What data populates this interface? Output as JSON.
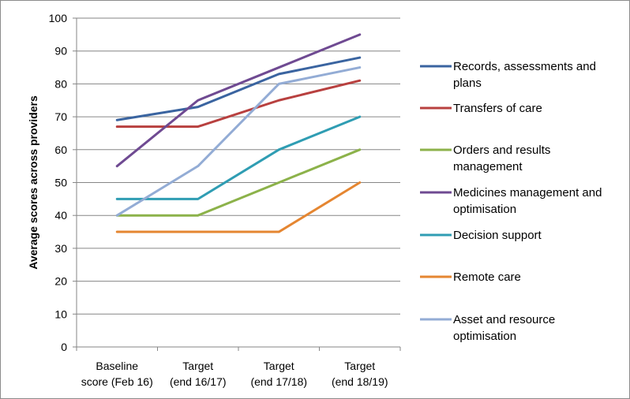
{
  "chart_data": {
    "type": "line",
    "title": "",
    "xlabel": "",
    "ylabel": "Average scores across providers",
    "ylim": [
      0,
      100
    ],
    "yticks": [
      0,
      10,
      20,
      30,
      40,
      50,
      60,
      70,
      80,
      90,
      100
    ],
    "grid": "horizontal",
    "legend_position": "right",
    "categories": [
      [
        "Baseline",
        "score (Feb 16)"
      ],
      [
        "Target",
        "(end 16/17)"
      ],
      [
        "Target",
        "(end 17/18)"
      ],
      [
        "Target",
        "(end 18/19)"
      ]
    ],
    "series": [
      {
        "name": [
          "Records, assessments and",
          "plans"
        ],
        "color": "#3a64a0",
        "values": [
          69,
          73,
          83,
          88
        ]
      },
      {
        "name": [
          "Transfers of care"
        ],
        "color": "#b8403f",
        "values": [
          67,
          67,
          75,
          81
        ]
      },
      {
        "name": [
          "Orders and results",
          "management"
        ],
        "color": "#8cb24a",
        "values": [
          40,
          40,
          50,
          60
        ]
      },
      {
        "name": [
          "Medicines management and",
          "optimisation"
        ],
        "color": "#6f4a92",
        "values": [
          55,
          75,
          85,
          95
        ]
      },
      {
        "name": [
          "Decision support"
        ],
        "color": "#2f9db3",
        "values": [
          45,
          45,
          60,
          70
        ]
      },
      {
        "name": [
          "Remote care"
        ],
        "color": "#e58631",
        "values": [
          35,
          35,
          35,
          50
        ]
      },
      {
        "name": [
          "Asset and resource",
          "optimisation"
        ],
        "color": "#93acd5",
        "values": [
          40,
          55,
          80,
          85
        ]
      }
    ]
  }
}
